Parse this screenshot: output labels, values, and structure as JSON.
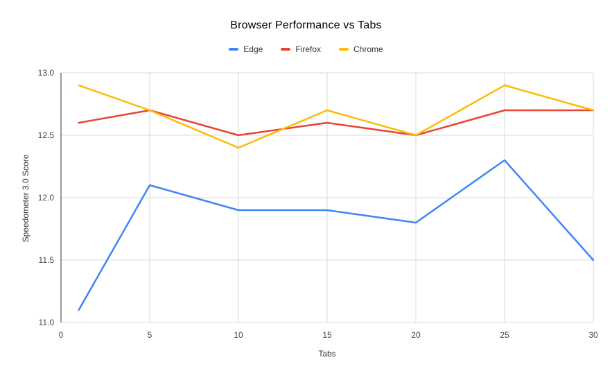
{
  "title": "Browser Performance vs Tabs",
  "legend": {
    "position": "top-center",
    "items": [
      "Edge",
      "Firefox",
      "Chrome"
    ]
  },
  "chart_data": {
    "type": "line",
    "title": "Browser Performance vs Tabs",
    "xlabel": "Tabs",
    "ylabel": "Speedometer 3.0 Score",
    "x": [
      1,
      5,
      10,
      15,
      20,
      25,
      30
    ],
    "series": [
      {
        "name": "Edge",
        "color": "#4285F4",
        "values": [
          11.1,
          12.1,
          11.9,
          11.9,
          11.8,
          12.3,
          11.5
        ]
      },
      {
        "name": "Firefox",
        "color": "#EA4335",
        "values": [
          12.6,
          12.7,
          12.5,
          12.6,
          12.5,
          12.7,
          12.7
        ]
      },
      {
        "name": "Chrome",
        "color": "#FBBC04",
        "values": [
          12.9,
          12.7,
          12.4,
          12.7,
          12.5,
          12.9,
          12.7
        ]
      }
    ],
    "xlim": [
      0,
      30
    ],
    "ylim": [
      11.0,
      13.0
    ],
    "x_ticks": [
      0,
      5,
      10,
      15,
      20,
      25,
      30
    ],
    "x_tick_labels": [
      "0",
      "5",
      "10",
      "15",
      "20",
      "25",
      "30"
    ],
    "y_ticks": [
      11.0,
      11.5,
      12.0,
      12.5,
      13.0
    ],
    "y_tick_labels": [
      "11.0",
      "11.5",
      "12.0",
      "12.5",
      "13.0"
    ],
    "grid": true,
    "legend_position": "top",
    "colors": {
      "gridline": "#d9d9d9",
      "axis_line": "#333333",
      "tick_label": "#444444",
      "axis_title": "#333333",
      "chart_title": "#000000",
      "background": "#ffffff"
    }
  }
}
